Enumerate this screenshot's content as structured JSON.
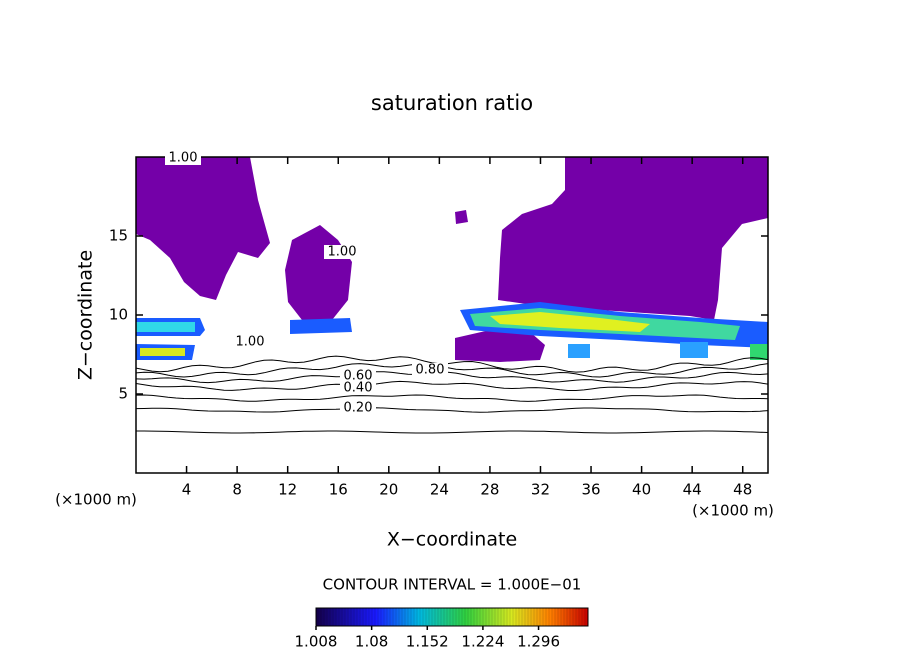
{
  "chart_data": {
    "type": "contour",
    "title": "saturation ratio",
    "x_label": "X−coordinate",
    "y_label": "Z−coordinate",
    "x_unit": "(×1000 m)",
    "x_unit_right": "(×1000 m)",
    "xlim": [
      0,
      50
    ],
    "xticks": [
      4,
      8,
      12,
      16,
      20,
      24,
      28,
      32,
      36,
      40,
      44,
      48
    ],
    "ylim": [
      0,
      20
    ],
    "yticks": [
      5,
      10,
      15
    ],
    "contour_interval": "CONTOUR INTERVAL = 1.000E−01",
    "contour_labels": [
      "1.00",
      "1.00",
      "0.60",
      "0.40",
      "0.20",
      "0.80",
      "1.00"
    ],
    "clim": [
      1.008,
      1.36
    ],
    "cticks": [
      1.008,
      1.08,
      1.152,
      1.224,
      1.296
    ],
    "fill_color": "#7400a8"
  }
}
